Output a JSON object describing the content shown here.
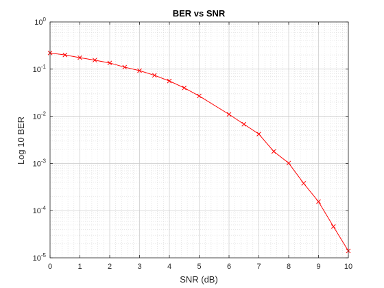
{
  "chart_data": {
    "type": "line",
    "title": "BER vs SNR",
    "xlabel": "SNR (dB)",
    "ylabel": "Log 10 BER",
    "xlim": [
      0,
      10
    ],
    "ylim": [
      1e-05,
      1
    ],
    "yscale": "log",
    "grid": true,
    "minor_grid": true,
    "x_ticks": [
      "0",
      "1",
      "2",
      "3",
      "4",
      "5",
      "6",
      "7",
      "8",
      "9",
      "10"
    ],
    "y_ticks": [
      {
        "base": "10",
        "exp": "-5",
        "value": 1e-05
      },
      {
        "base": "10",
        "exp": "-4",
        "value": 0.0001
      },
      {
        "base": "10",
        "exp": "-3",
        "value": 0.001
      },
      {
        "base": "10",
        "exp": "-2",
        "value": 0.01
      },
      {
        "base": "10",
        "exp": "-1",
        "value": 0.1
      },
      {
        "base": "10",
        "exp": "0",
        "value": 1
      }
    ],
    "series": [
      {
        "color": "#ff0000",
        "marker": "x",
        "x": [
          0,
          0.5,
          1,
          1.5,
          2,
          2.5,
          3,
          3.5,
          4,
          4.5,
          5,
          6,
          6.5,
          7,
          7.5,
          8,
          8.5,
          9,
          9.5,
          10
        ],
        "y": [
          0.22,
          0.2,
          0.175,
          0.155,
          0.135,
          0.11,
          0.093,
          0.074,
          0.056,
          0.04,
          0.027,
          0.011,
          0.0068,
          0.0042,
          0.0018,
          0.00102,
          0.00038,
          0.000155,
          4.6e-05,
          1.4e-05
        ]
      }
    ]
  }
}
